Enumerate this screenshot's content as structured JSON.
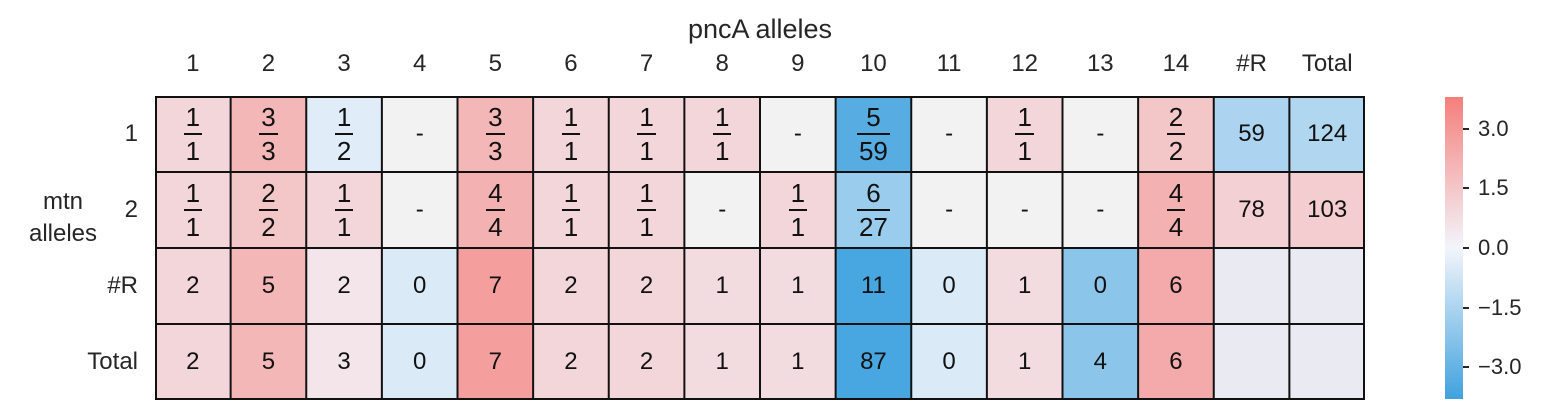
{
  "chart_data": {
    "type": "heatmap",
    "title": "pncA alleles",
    "ylabel": "mtn alleles",
    "columns": [
      "1",
      "2",
      "3",
      "4",
      "5",
      "6",
      "7",
      "8",
      "9",
      "10",
      "11",
      "12",
      "13",
      "14",
      "#R",
      "Total"
    ],
    "rows": [
      "1",
      "2",
      "#R",
      "Total"
    ],
    "cells": [
      [
        "1/1",
        "3/3",
        "1/2",
        "-",
        "3/3",
        "1/1",
        "1/1",
        "1/1",
        "-",
        "5/59",
        "-",
        "1/1",
        "-",
        "2/2",
        "59",
        "124"
      ],
      [
        "1/1",
        "2/2",
        "1/1",
        "-",
        "4/4",
        "1/1",
        "1/1",
        "-",
        "1/1",
        "6/27",
        "-",
        "-",
        "-",
        "4/4",
        "78",
        "103"
      ],
      [
        "2",
        "5",
        "2",
        "0",
        "7",
        "2",
        "2",
        "1",
        "1",
        "11",
        "0",
        "1",
        "0",
        "6",
        "",
        ""
      ],
      [
        "2",
        "5",
        "3",
        "0",
        "7",
        "2",
        "2",
        "1",
        "1",
        "87",
        "0",
        "1",
        "4",
        "6",
        "",
        ""
      ]
    ],
    "values": [
      [
        1.0,
        2.0,
        -0.4,
        null,
        2.0,
        1.0,
        1.0,
        1.0,
        null,
        -3.3,
        null,
        1.0,
        null,
        1.5,
        -1.5,
        -1.4
      ],
      [
        1.0,
        1.5,
        1.0,
        null,
        2.2,
        1.0,
        1.0,
        null,
        1.0,
        -1.9,
        null,
        null,
        null,
        2.2,
        1.2,
        1.3
      ],
      [
        1.0,
        2.0,
        0.5,
        -0.5,
        2.8,
        1.0,
        1.0,
        0.8,
        0.8,
        -3.6,
        -0.5,
        0.8,
        -2.2,
        2.4,
        null,
        null
      ],
      [
        1.0,
        2.0,
        0.5,
        -0.5,
        2.8,
        1.0,
        1.0,
        0.8,
        0.8,
        -3.6,
        -0.5,
        0.8,
        -2.2,
        2.4,
        null,
        null
      ]
    ],
    "colorbar": {
      "min": -3.8,
      "max": 3.8,
      "ticks": [
        3.0,
        1.5,
        0.0,
        -1.5,
        -3.0
      ],
      "tick_labels": [
        "3.0",
        "1.5",
        "0.0",
        "−1.5",
        "−3.0"
      ],
      "low_color": "#3fa2de",
      "mid_color": "#f3f5fb",
      "high_color": "#f47f7b"
    },
    "missing_color": "#f2f2f2",
    "summary_blank_color": "#eaeaf2",
    "grid": true
  }
}
